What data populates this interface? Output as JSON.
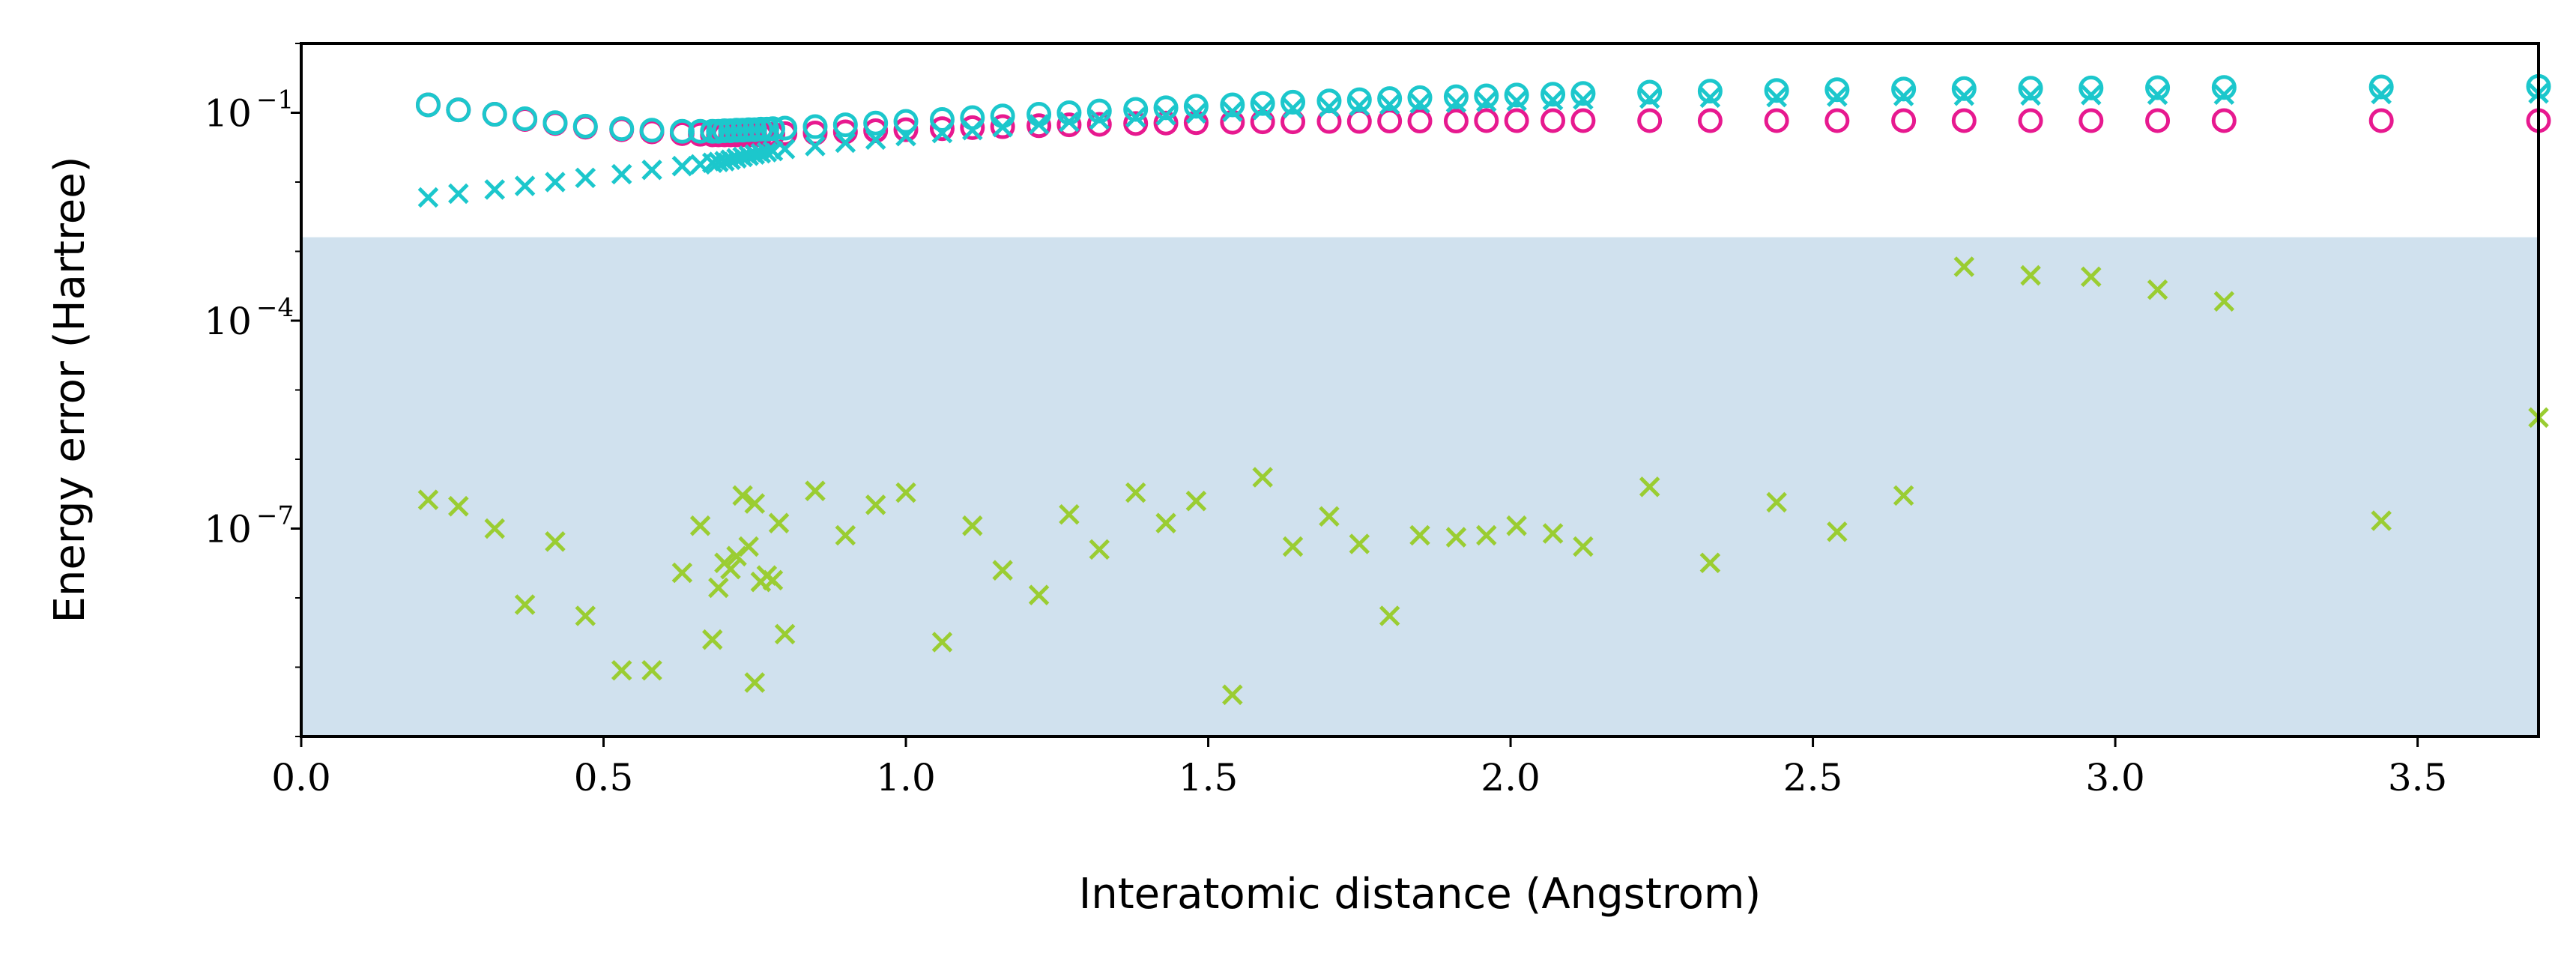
{
  "chart_data": {
    "type": "scatter",
    "title": "",
    "xlabel": "Interatomic distance (Angstrom)",
    "ylabel": "Energy error (Hartree)",
    "xlim": [
      0.0,
      3.7
    ],
    "ylim": [
      1e-10,
      1
    ],
    "yscale": "log",
    "grid": false,
    "legend": "none",
    "x_ticks": [
      "0.0",
      "0.5",
      "1.0",
      "1.5",
      "2.0",
      "2.5",
      "3.0",
      "3.5"
    ],
    "y_ticks": [
      {
        "base": "10",
        "exp": "−1",
        "value": 0.1
      },
      {
        "base": "10",
        "exp": "−4",
        "value": 0.0001
      },
      {
        "base": "10",
        "exp": "−7",
        "value": 1e-07
      }
    ],
    "shaded_region": {
      "y_from": 1e-10,
      "y_to": 0.0016,
      "color": "#d0e1ee"
    },
    "series": [
      {
        "marker": "circle",
        "color": "#e7198f",
        "points": [
          [
            0.21,
            0.13
          ],
          [
            0.26,
            0.11
          ],
          [
            0.32,
            0.095
          ],
          [
            0.37,
            0.08
          ],
          [
            0.42,
            0.07
          ],
          [
            0.47,
            0.062
          ],
          [
            0.53,
            0.057
          ],
          [
            0.58,
            0.053
          ],
          [
            0.63,
            0.05
          ],
          [
            0.66,
            0.049
          ],
          [
            0.68,
            0.048
          ],
          [
            0.69,
            0.048
          ],
          [
            0.7,
            0.048
          ],
          [
            0.71,
            0.048
          ],
          [
            0.72,
            0.048
          ],
          [
            0.73,
            0.048
          ],
          [
            0.74,
            0.048
          ],
          [
            0.75,
            0.048
          ],
          [
            0.76,
            0.048
          ],
          [
            0.77,
            0.048
          ],
          [
            0.78,
            0.049
          ],
          [
            0.8,
            0.05
          ],
          [
            0.85,
            0.051
          ],
          [
            0.9,
            0.053
          ],
          [
            0.95,
            0.055
          ],
          [
            1.0,
            0.057
          ],
          [
            1.06,
            0.059
          ],
          [
            1.11,
            0.061
          ],
          [
            1.16,
            0.063
          ],
          [
            1.22,
            0.065
          ],
          [
            1.27,
            0.067
          ],
          [
            1.32,
            0.068
          ],
          [
            1.38,
            0.07
          ],
          [
            1.43,
            0.071
          ],
          [
            1.48,
            0.072
          ],
          [
            1.54,
            0.073
          ],
          [
            1.59,
            0.074
          ],
          [
            1.64,
            0.074
          ],
          [
            1.7,
            0.075
          ],
          [
            1.75,
            0.075
          ],
          [
            1.8,
            0.076
          ],
          [
            1.85,
            0.076
          ],
          [
            1.91,
            0.076
          ],
          [
            1.96,
            0.077
          ],
          [
            2.01,
            0.077
          ],
          [
            2.07,
            0.077
          ],
          [
            2.12,
            0.077
          ],
          [
            2.23,
            0.077
          ],
          [
            2.33,
            0.077
          ],
          [
            2.44,
            0.077
          ],
          [
            2.54,
            0.077
          ],
          [
            2.65,
            0.077
          ],
          [
            2.75,
            0.077
          ],
          [
            2.86,
            0.077
          ],
          [
            2.96,
            0.077
          ],
          [
            3.07,
            0.077
          ],
          [
            3.18,
            0.077
          ],
          [
            3.44,
            0.077
          ],
          [
            3.7,
            0.077
          ]
        ]
      },
      {
        "marker": "circle",
        "color": "#1cc7cc",
        "points": [
          [
            0.21,
            0.13
          ],
          [
            0.26,
            0.11
          ],
          [
            0.32,
            0.095
          ],
          [
            0.37,
            0.082
          ],
          [
            0.42,
            0.072
          ],
          [
            0.47,
            0.064
          ],
          [
            0.53,
            0.059
          ],
          [
            0.58,
            0.056
          ],
          [
            0.63,
            0.054
          ],
          [
            0.66,
            0.054
          ],
          [
            0.68,
            0.054
          ],
          [
            0.69,
            0.054
          ],
          [
            0.7,
            0.055
          ],
          [
            0.71,
            0.055
          ],
          [
            0.72,
            0.056
          ],
          [
            0.73,
            0.056
          ],
          [
            0.74,
            0.057
          ],
          [
            0.75,
            0.057
          ],
          [
            0.76,
            0.058
          ],
          [
            0.77,
            0.058
          ],
          [
            0.78,
            0.059
          ],
          [
            0.8,
            0.06
          ],
          [
            0.85,
            0.063
          ],
          [
            0.9,
            0.067
          ],
          [
            0.95,
            0.071
          ],
          [
            1.0,
            0.075
          ],
          [
            1.06,
            0.08
          ],
          [
            1.11,
            0.085
          ],
          [
            1.16,
            0.09
          ],
          [
            1.22,
            0.095
          ],
          [
            1.27,
            0.1
          ],
          [
            1.32,
            0.106
          ],
          [
            1.38,
            0.112
          ],
          [
            1.43,
            0.118
          ],
          [
            1.48,
            0.124
          ],
          [
            1.54,
            0.13
          ],
          [
            1.59,
            0.136
          ],
          [
            1.64,
            0.142
          ],
          [
            1.7,
            0.148
          ],
          [
            1.75,
            0.154
          ],
          [
            1.8,
            0.16
          ],
          [
            1.85,
            0.165
          ],
          [
            1.91,
            0.17
          ],
          [
            1.96,
            0.175
          ],
          [
            2.01,
            0.18
          ],
          [
            2.07,
            0.185
          ],
          [
            2.12,
            0.19
          ],
          [
            2.23,
            0.198
          ],
          [
            2.33,
            0.205
          ],
          [
            2.44,
            0.21
          ],
          [
            2.54,
            0.215
          ],
          [
            2.65,
            0.22
          ],
          [
            2.75,
            0.223
          ],
          [
            2.86,
            0.226
          ],
          [
            2.96,
            0.228
          ],
          [
            3.07,
            0.23
          ],
          [
            3.18,
            0.232
          ],
          [
            3.44,
            0.236
          ],
          [
            3.7,
            0.24
          ]
        ]
      },
      {
        "marker": "x",
        "color": "#1cc7cc",
        "points": [
          [
            0.21,
            0.006
          ],
          [
            0.26,
            0.0068
          ],
          [
            0.32,
            0.0078
          ],
          [
            0.37,
            0.0088
          ],
          [
            0.42,
            0.01
          ],
          [
            0.47,
            0.0115
          ],
          [
            0.53,
            0.013
          ],
          [
            0.58,
            0.015
          ],
          [
            0.63,
            0.017
          ],
          [
            0.66,
            0.018
          ],
          [
            0.68,
            0.019
          ],
          [
            0.69,
            0.0195
          ],
          [
            0.7,
            0.02
          ],
          [
            0.71,
            0.021
          ],
          [
            0.72,
            0.022
          ],
          [
            0.73,
            0.023
          ],
          [
            0.74,
            0.024
          ],
          [
            0.75,
            0.025
          ],
          [
            0.76,
            0.026
          ],
          [
            0.77,
            0.027
          ],
          [
            0.78,
            0.028
          ],
          [
            0.8,
            0.03
          ],
          [
            0.85,
            0.033
          ],
          [
            0.9,
            0.037
          ],
          [
            0.95,
            0.041
          ],
          [
            1.0,
            0.046
          ],
          [
            1.06,
            0.051
          ],
          [
            1.11,
            0.056
          ],
          [
            1.16,
            0.062
          ],
          [
            1.22,
            0.068
          ],
          [
            1.27,
            0.074
          ],
          [
            1.32,
            0.08
          ],
          [
            1.38,
            0.086
          ],
          [
            1.43,
            0.092
          ],
          [
            1.48,
            0.098
          ],
          [
            1.54,
            0.104
          ],
          [
            1.59,
            0.11
          ],
          [
            1.64,
            0.116
          ],
          [
            1.7,
            0.121
          ],
          [
            1.75,
            0.126
          ],
          [
            1.8,
            0.131
          ],
          [
            1.85,
            0.136
          ],
          [
            1.91,
            0.14
          ],
          [
            1.96,
            0.144
          ],
          [
            2.01,
            0.148
          ],
          [
            2.07,
            0.152
          ],
          [
            2.12,
            0.155
          ],
          [
            2.23,
            0.16
          ],
          [
            2.33,
            0.165
          ],
          [
            2.44,
            0.168
          ],
          [
            2.54,
            0.171
          ],
          [
            2.65,
            0.174
          ],
          [
            2.75,
            0.176
          ],
          [
            2.86,
            0.178
          ],
          [
            2.96,
            0.18
          ],
          [
            3.07,
            0.182
          ],
          [
            3.18,
            0.183
          ],
          [
            3.44,
            0.186
          ],
          [
            3.7,
            0.19
          ]
        ]
      },
      {
        "marker": "x",
        "color": "#9acd32",
        "points": [
          [
            0.21,
            2.6e-07
          ],
          [
            0.26,
            2.1e-07
          ],
          [
            0.32,
            1e-07
          ],
          [
            0.37,
            8e-09
          ],
          [
            0.42,
            6.5e-08
          ],
          [
            0.47,
            5.5e-09
          ],
          [
            0.53,
            9e-10
          ],
          [
            0.58,
            9e-10
          ],
          [
            0.63,
            2.3e-08
          ],
          [
            0.66,
            1.1e-07
          ],
          [
            0.68,
            2.5e-09
          ],
          [
            0.69,
            1.4e-08
          ],
          [
            0.7,
            3.2e-08
          ],
          [
            0.71,
            2.6e-08
          ],
          [
            0.72,
            4e-08
          ],
          [
            0.73,
            3e-07
          ],
          [
            0.74,
            5.5e-08
          ],
          [
            0.75,
            2.3e-07
          ],
          [
            0.75,
            6e-10
          ],
          [
            0.76,
            1.7e-08
          ],
          [
            0.77,
            2.1e-08
          ],
          [
            0.78,
            1.8e-08
          ],
          [
            0.79,
            1.2e-07
          ],
          [
            0.8,
            3e-09
          ],
          [
            0.85,
            3.5e-07
          ],
          [
            0.9,
            8e-08
          ],
          [
            0.95,
            2.2e-07
          ],
          [
            1.0,
            3.3e-07
          ],
          [
            1.06,
            2.3e-09
          ],
          [
            1.11,
            1.1e-07
          ],
          [
            1.16,
            2.5e-08
          ],
          [
            1.22,
            1.1e-08
          ],
          [
            1.27,
            1.6e-07
          ],
          [
            1.32,
            5e-08
          ],
          [
            1.38,
            3.3e-07
          ],
          [
            1.43,
            1.2e-07
          ],
          [
            1.48,
            2.5e-07
          ],
          [
            1.54,
            4e-10
          ],
          [
            1.59,
            5.5e-07
          ],
          [
            1.64,
            5.5e-08
          ],
          [
            1.7,
            1.5e-07
          ],
          [
            1.75,
            6e-08
          ],
          [
            1.8,
            5.5e-09
          ],
          [
            1.85,
            8e-08
          ],
          [
            1.91,
            7.5e-08
          ],
          [
            1.96,
            8e-08
          ],
          [
            2.01,
            1.1e-07
          ],
          [
            2.07,
            8.5e-08
          ],
          [
            2.12,
            5.5e-08
          ],
          [
            2.23,
            4e-07
          ],
          [
            2.33,
            3.2e-08
          ],
          [
            2.44,
            2.4e-07
          ],
          [
            2.54,
            9e-08
          ],
          [
            2.65,
            3e-07
          ],
          [
            2.75,
            0.0006
          ],
          [
            2.86,
            0.00045
          ],
          [
            2.96,
            0.00043
          ],
          [
            3.07,
            0.00028
          ],
          [
            3.18,
            0.00019
          ],
          [
            3.44,
            1.3e-07
          ],
          [
            3.7,
            4e-06
          ]
        ]
      }
    ]
  }
}
